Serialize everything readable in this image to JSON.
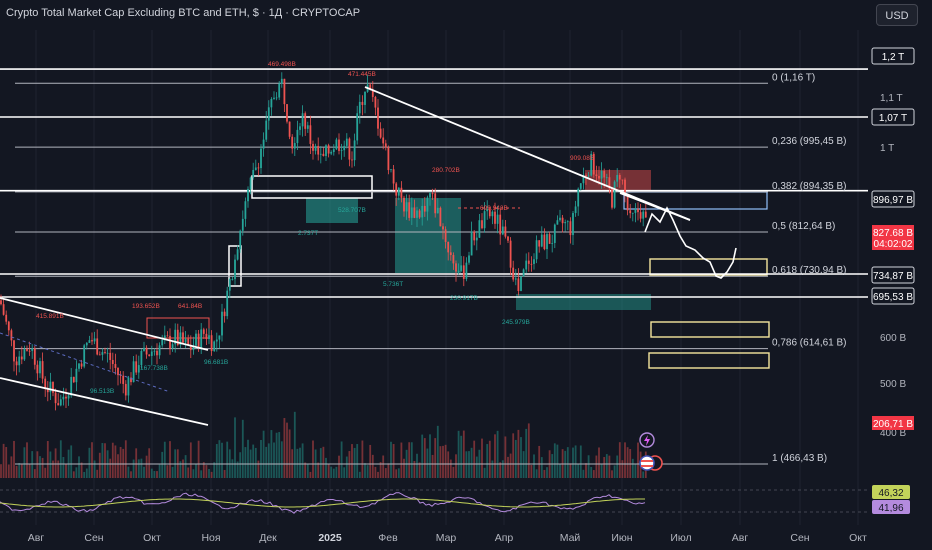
{
  "header": {
    "title": "Crypto Total Market Cap Excluding BTC and ETH, $ · 1Д · CRYPTOCAP",
    "currency_button": "USD"
  },
  "colors": {
    "background": "#131722",
    "up": "#26a69a",
    "down": "#ef5350",
    "line": "#ffffff",
    "fib": "#b2b5be",
    "yellow_box": "#f5e79e",
    "blue_box": "#90bff9",
    "rsi": "#b48bde",
    "rsi_ma": "#c3d35a"
  },
  "chart_data": {
    "type": "candlestick",
    "x_axis_labels": [
      "Авг",
      "Сен",
      "Окт",
      "Ноя",
      "Дек",
      "2025",
      "Фев",
      "Мар",
      "Апр",
      "Май",
      "Июн",
      "Июл",
      "Авг",
      "Сен",
      "Окт"
    ],
    "y_axis_labels": [
      "1,1 T",
      "1 T",
      "600 B",
      "500 B",
      "400 B"
    ],
    "price_tags": [
      {
        "label": "1,2 T",
        "style": "outline"
      },
      {
        "label": "1,07 T",
        "style": "outline"
      },
      {
        "label": "896,97 B",
        "style": "outline"
      },
      {
        "label": "827,68 B",
        "style": "red"
      },
      {
        "label": "04:02:02",
        "style": "red"
      },
      {
        "label": "734,87 B",
        "style": "outline"
      },
      {
        "label": "695,53 B",
        "style": "outline"
      },
      {
        "label": "206,71 B",
        "style": "red"
      }
    ],
    "fibonacci_levels": [
      {
        "label": "0 (1,16 T)",
        "value": 1160
      },
      {
        "label": "0,236 (995,45 B)",
        "value": 995.45
      },
      {
        "label": "0,382 (894,35 B)",
        "value": 894.35
      },
      {
        "label": "0,5 (812,64 B)",
        "value": 812.64
      },
      {
        "label": "0,618 (730,94 B)",
        "value": 730.94
      },
      {
        "label": "0,786 (614,61 B)",
        "value": 614.61
      },
      {
        "label": "1 (466,43 B)",
        "value": 466.43
      }
    ],
    "horizontal_levels": [
      1200,
      1070,
      896.97,
      734.87,
      695.53
    ],
    "annotations": [
      "469.498B",
      "471.445B",
      "280.702B",
      "909.08B",
      "699.943B",
      "528.707B",
      "2.737T",
      "5.736T",
      "230.917B",
      "245.979B",
      "415.891B",
      "193.652B",
      "641.84B",
      "167.738B",
      "96.681B",
      "96.513B"
    ],
    "rsi": {
      "values": [
        "46,32",
        "41,96"
      ]
    }
  }
}
